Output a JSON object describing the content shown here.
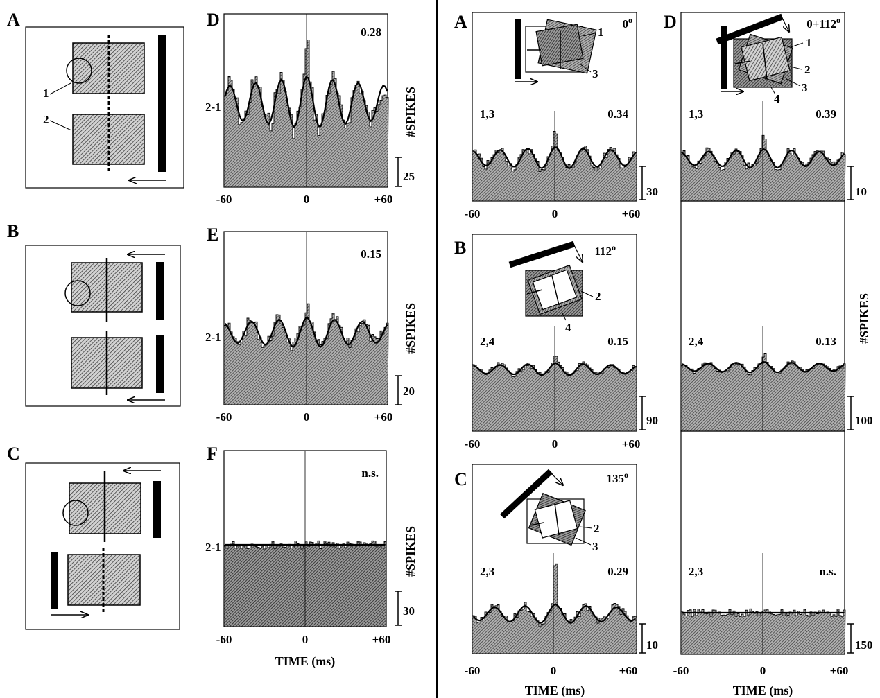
{
  "left_figure": {
    "panel_labels": [
      "A",
      "B",
      "C",
      "D",
      "E",
      "F"
    ],
    "schematic_labels": {
      "rf1": "1",
      "rf2": "2"
    },
    "histograms": [
      {
        "label": "D",
        "pair": "2-1",
        "value": "0.28",
        "scale": "25"
      },
      {
        "label": "E",
        "pair": "2-1",
        "value": "0.15",
        "scale": "20"
      },
      {
        "label": "F",
        "pair": "2-1",
        "value": "n.s.",
        "scale": "30"
      }
    ],
    "ylabel": "#SPIKES",
    "xlabel": "TIME (ms)",
    "xticks": [
      "-60",
      "0",
      "+60"
    ]
  },
  "right_figure": {
    "panel_labels": [
      "A",
      "B",
      "C",
      "D"
    ],
    "angles": {
      "A": "0",
      "B": "112",
      "C": "135",
      "D": "0+112"
    },
    "degree_mark": "o",
    "inset_numbers": {
      "A": [
        "1",
        "3"
      ],
      "B": [
        "2",
        "4"
      ],
      "C": [
        "2",
        "3"
      ],
      "D": [
        "1",
        "2",
        "3",
        "4"
      ]
    },
    "histograms": [
      {
        "pair": "1,3",
        "value": "0.34",
        "scale": "30"
      },
      {
        "pair": "2,4",
        "value": "0.15",
        "scale": "90"
      },
      {
        "pair": "2,3",
        "value": "0.29",
        "scale": "10"
      },
      {
        "pair": "1,3",
        "value": "0.39",
        "scale": "10"
      },
      {
        "pair": "2,4",
        "value": "0.13",
        "scale": "100"
      },
      {
        "pair": "2,3",
        "value": "n.s.",
        "scale": "150"
      }
    ],
    "ylabel": "#SPIKES",
    "xlabel": "TIME (ms)",
    "xticks": [
      "-60",
      "0",
      "+60"
    ]
  }
}
